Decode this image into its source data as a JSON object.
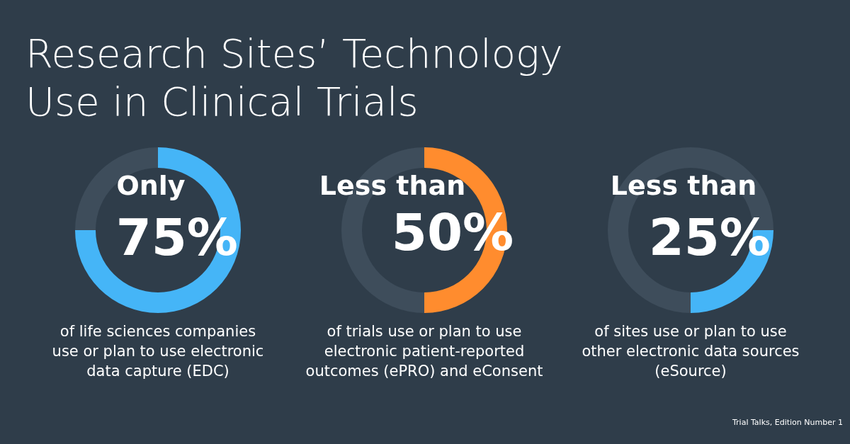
{
  "chart_data": [
    {
      "type": "donut",
      "title": "Research Sites’ Technology Use in Clinical Trials",
      "subtitle": "Only",
      "categories": [
        null,
        null
      ],
      "values": [
        75,
        25
      ],
      "colors": [
        "#45b5f7",
        "#3e4d5b"
      ],
      "value_labels": [
        "75%",
        null
      ],
      "annotations": [
        "of life sciences companies use or plan to use electronic data capture (EDC)"
      ]
    },
    {
      "type": "donut",
      "subtitle": "Less than",
      "categories": [
        null,
        null
      ],
      "values": [
        50,
        50
      ],
      "colors": [
        "#ff8c2e",
        "#3e4d5b"
      ],
      "value_labels": [
        "50%",
        null
      ],
      "annotations": [
        "of trials use or plan to use electronic patient-reported outcomes (ePRO) and eConsent"
      ]
    },
    {
      "type": "donut",
      "subtitle": "Less than",
      "categories": [
        null,
        null,
        null
      ],
      "values": [
        25,
        25,
        50
      ],
      "colors": [
        "#3e4d5b",
        "#45b5f7",
        "#3e4d5b"
      ],
      "value_labels": [
        null,
        "25%",
        null
      ],
      "annotations": [
        "of sites use or plan to use other electronic data sources (eSource)",
        "Trial Talks, Edition Number 1"
      ]
    }
  ]
}
